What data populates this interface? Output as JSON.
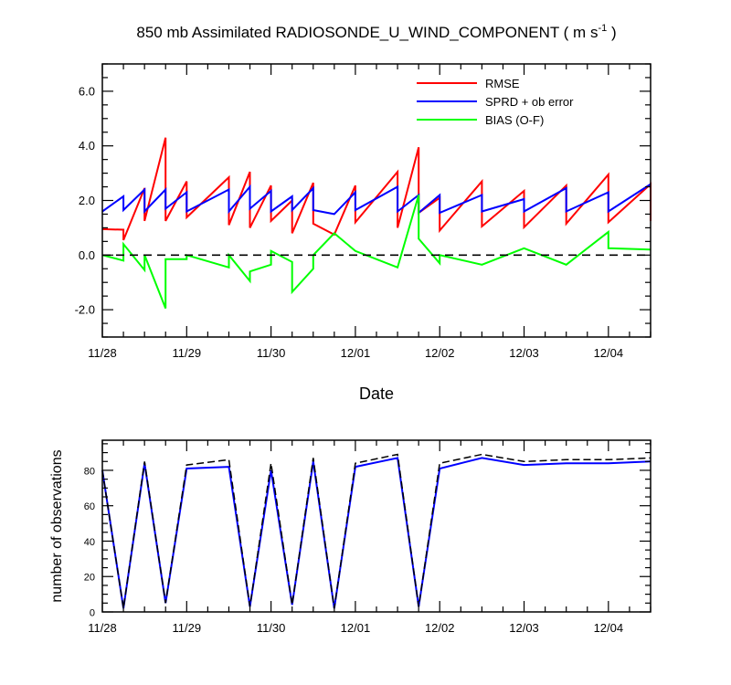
{
  "chart_data": [
    {
      "type": "line",
      "title": "850 mb Assimilated RADIOSONDE_U_WIND_COMPONENT ( m s",
      "title_sup": "-1",
      "title_end": " )",
      "xlabel": "Date",
      "ylabel": "",
      "x_range": [
        "11/28",
        "12/04 12:00"
      ],
      "ylim": [
        -3.0,
        7.0
      ],
      "y_ticks": [
        -2.0,
        0.0,
        2.0,
        4.0,
        6.0
      ],
      "y_tick_labels": [
        "-2.0",
        "0.0",
        "2.0",
        "4.0",
        "6.0"
      ],
      "x_ticks": [
        0,
        1,
        2,
        3,
        4,
        5,
        6
      ],
      "x_tick_labels": [
        "11/28",
        "11/29",
        "11/30",
        "12/01",
        "12/02",
        "12/03",
        "12/04"
      ],
      "x_unit": "days since 11/28 00Z",
      "legend_position": "top-right",
      "reference_line": {
        "y": 0.0,
        "style": "dashed",
        "color": "#000000"
      },
      "series": [
        {
          "name": "RMSE",
          "color": "#ff0000",
          "x": [
            0,
            0.25,
            0.25,
            0.5,
            0.5,
            0.75,
            0.75,
            1.0,
            1.0,
            1.5,
            1.5,
            1.75,
            1.75,
            2.0,
            2.0,
            2.25,
            2.25,
            2.5,
            2.5,
            2.75,
            2.75,
            3.0,
            3.0,
            3.5,
            3.5,
            3.75,
            3.75,
            4.0,
            4.0,
            4.5,
            4.5,
            5.0,
            5.0,
            5.5,
            5.5,
            6.0,
            6.0,
            6.5,
            6.5
          ],
          "y": [
            0.95,
            0.93,
            0.55,
            2.45,
            1.25,
            4.3,
            1.25,
            2.7,
            1.38,
            2.85,
            1.1,
            3.05,
            1.0,
            2.55,
            1.25,
            2.0,
            0.8,
            2.65,
            1.15,
            0.75,
            0.75,
            2.55,
            1.2,
            3.05,
            1.0,
            3.95,
            1.55,
            2.1,
            0.9,
            2.7,
            1.05,
            2.35,
            1.02,
            2.55,
            1.15,
            2.95,
            1.2,
            2.6,
            1.25
          ]
        },
        {
          "name": "SPRD + ob error",
          "color": "#0000ff",
          "x": [
            0,
            0.25,
            0.25,
            0.5,
            0.5,
            0.75,
            0.75,
            1.0,
            1.0,
            1.5,
            1.5,
            1.75,
            1.75,
            2.0,
            2.0,
            2.25,
            2.25,
            2.5,
            2.5,
            2.75,
            2.75,
            3.0,
            3.0,
            3.5,
            3.5,
            3.75,
            3.75,
            4.0,
            4.0,
            4.5,
            4.5,
            5.0,
            5.0,
            5.5,
            5.5,
            6.0,
            6.0,
            6.5
          ],
          "y": [
            1.6,
            2.15,
            1.65,
            2.4,
            1.6,
            2.4,
            1.7,
            2.3,
            1.6,
            2.4,
            1.6,
            2.5,
            1.7,
            2.35,
            1.6,
            2.15,
            1.65,
            2.45,
            1.65,
            1.5,
            1.5,
            2.3,
            1.65,
            2.5,
            1.6,
            2.2,
            1.55,
            2.2,
            1.55,
            2.2,
            1.6,
            2.05,
            1.6,
            2.45,
            1.6,
            2.3,
            1.6,
            2.6
          ]
        },
        {
          "name": "BIAS (O-F)",
          "color": "#00ff00",
          "x": [
            0,
            0.25,
            0.25,
            0.5,
            0.5,
            0.75,
            0.75,
            1.0,
            1.0,
            1.5,
            1.5,
            1.75,
            1.75,
            2.0,
            2.0,
            2.25,
            2.25,
            2.5,
            2.5,
            2.75,
            3.0,
            3.5,
            3.75,
            3.75,
            4.0,
            4.0,
            4.5,
            5.0,
            5.5,
            6.0,
            6.0,
            6.5
          ],
          "y": [
            0.0,
            -0.2,
            0.4,
            -0.55,
            0.0,
            -1.95,
            -0.15,
            -0.15,
            0.0,
            -0.45,
            0.0,
            -0.95,
            -0.6,
            -0.35,
            0.15,
            -0.25,
            -1.35,
            -0.5,
            0.0,
            0.8,
            0.15,
            -0.45,
            2.2,
            0.6,
            -0.3,
            0.0,
            -0.35,
            0.25,
            -0.35,
            0.85,
            0.25,
            0.2
          ]
        }
      ]
    },
    {
      "type": "line",
      "title": "",
      "xlabel": "",
      "ylabel": "number of observations",
      "x_range": [
        "11/28",
        "12/04 12:00"
      ],
      "ylim": [
        0,
        97
      ],
      "y_ticks": [
        0,
        20,
        40,
        60,
        80
      ],
      "y_tick_labels": [
        "0",
        "20",
        "40",
        "60",
        "80"
      ],
      "x_ticks": [
        0,
        1,
        2,
        3,
        4,
        5,
        6
      ],
      "x_tick_labels": [
        "11/28",
        "11/29",
        "11/30",
        "12/01",
        "12/02",
        "12/03",
        "12/04"
      ],
      "x_unit": "days since 11/28 00Z",
      "series": [
        {
          "name": "",
          "color": "#0000ff",
          "style": "solid",
          "x": [
            0,
            0.25,
            0.5,
            0.75,
            1.0,
            1.5,
            1.75,
            2.0,
            2.25,
            2.5,
            2.75,
            3.0,
            3.5,
            3.75,
            4.0,
            4.5,
            5.0,
            5.5,
            6.0,
            6.5
          ],
          "y": [
            80,
            2,
            84,
            5,
            81,
            82,
            3,
            80,
            4,
            85,
            2,
            82,
            87,
            3,
            81,
            87,
            83,
            84,
            84,
            85
          ]
        },
        {
          "name": "",
          "color": "#000000",
          "style": "dashed",
          "x": [
            0,
            0.25,
            0.5,
            0.75,
            1.0,
            1.5,
            1.75,
            2.0,
            2.25,
            2.5,
            2.75,
            3.0,
            3.5,
            3.75,
            4.0,
            4.5,
            5.0,
            5.5,
            6.0,
            6.5
          ],
          "y": [
            80,
            2,
            85,
            5,
            83,
            86,
            3,
            84,
            4,
            87,
            2,
            84,
            89,
            3,
            84,
            89,
            85,
            86,
            86,
            87
          ]
        }
      ]
    }
  ]
}
